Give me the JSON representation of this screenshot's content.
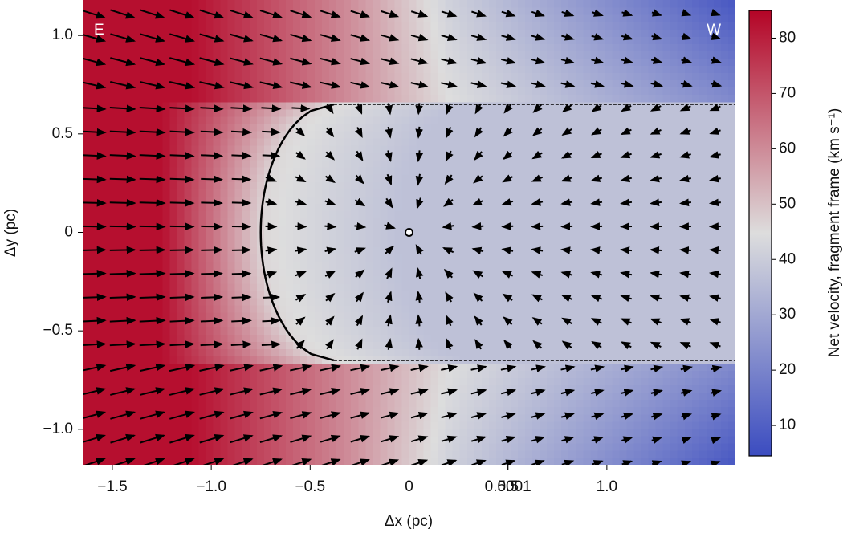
{
  "chart_data": {
    "type": "vector-field",
    "xlabel": "Δx (pc)",
    "ylabel": "Δy (pc)",
    "xlim": [
      -1.65,
      1.65
    ],
    "xticks": [
      {
        "value": -1.5,
        "label": "−1.5"
      },
      {
        "value": -1,
        "label": "−1.0"
      },
      {
        "value": -0.5,
        "label": "−0.5"
      },
      0,
      0.5,
      {
        "value": 1,
        "label": "1.0"
      },
      0.5001
    ],
    "ylim": [
      -1.18,
      1.18
    ],
    "yticks": [
      {
        "value": -1,
        "label": "−1.0"
      },
      {
        "value": -0.5,
        "label": "−0.5"
      },
      0,
      0.5,
      {
        "value": 1,
        "label": "1.0"
      }
    ],
    "annotations": [
      "E",
      "W"
    ],
    "colorbar": {
      "label": "Net velocity, fragment frame (km s⁻¹)",
      "lim": [
        4.5,
        85
      ],
      "ticks": [
        10,
        20,
        30,
        40,
        50,
        60,
        70,
        80
      ],
      "colormap": [
        "#3b4cc0",
        "#dddddd",
        "#b40426"
      ]
    }
  }
}
